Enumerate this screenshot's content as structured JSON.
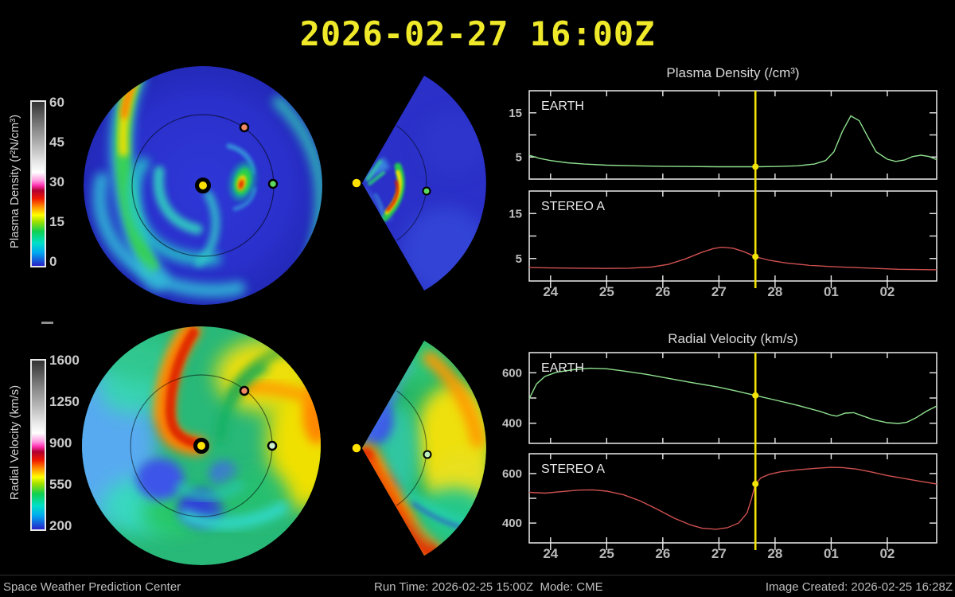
{
  "title": "2026-02-27 16:00Z",
  "colorbars": [
    {
      "label": "Plasma Density (r²N/cm³)",
      "ticks": [
        "60",
        "45",
        "30",
        "15",
        "0"
      ]
    },
    {
      "label": "Radial Velocity (km/s)",
      "ticks": [
        "1600",
        "1250",
        "900",
        "550",
        "200"
      ]
    }
  ],
  "footer": {
    "left": "Space Weather Prediction Center",
    "center": "Run Time: 2026-02-25 15:00Z  Mode: CME",
    "right": "Image Created: 2026-02-25 16:28Z"
  },
  "polar_markers": {
    "sun": "#ffe200",
    "earth": "#5cd85c",
    "stereo_a": "#ef8a64"
  },
  "chart_data": [
    {
      "type": "line",
      "title": "Plasma Density (/cm³)",
      "xlim": [
        23.62,
        30.88
      ],
      "xticks": [
        24,
        25,
        26,
        27,
        28,
        29,
        30
      ],
      "xtick_labels": [
        "24",
        "25",
        "26",
        "27",
        "28",
        "01",
        "02"
      ],
      "marker_x": 27.65,
      "marker_color": "#f2e205",
      "ylim": [
        0,
        20
      ],
      "yticks": [
        5,
        10,
        15
      ],
      "ytick_labels": [
        "5",
        "",
        "15"
      ],
      "panels": [
        {
          "label": "EARTH",
          "color": "#8fe08f",
          "points": [
            [
              23.62,
              5.4
            ],
            [
              23.8,
              4.7
            ],
            [
              24.0,
              4.2
            ],
            [
              24.3,
              3.7
            ],
            [
              24.6,
              3.4
            ],
            [
              25.0,
              3.15
            ],
            [
              25.5,
              3.0
            ],
            [
              26.0,
              2.9
            ],
            [
              26.5,
              2.85
            ],
            [
              27.0,
              2.8
            ],
            [
              27.3,
              2.8
            ],
            [
              27.65,
              2.8
            ],
            [
              28.0,
              2.85
            ],
            [
              28.4,
              3.0
            ],
            [
              28.7,
              3.4
            ],
            [
              28.9,
              4.2
            ],
            [
              29.05,
              6.2
            ],
            [
              29.2,
              10.8
            ],
            [
              29.35,
              14.3
            ],
            [
              29.5,
              13.2
            ],
            [
              29.65,
              9.6
            ],
            [
              29.8,
              6.2
            ],
            [
              30.0,
              4.5
            ],
            [
              30.15,
              4.0
            ],
            [
              30.3,
              4.3
            ],
            [
              30.45,
              5.1
            ],
            [
              30.6,
              5.4
            ],
            [
              30.75,
              5.1
            ],
            [
              30.88,
              4.4
            ]
          ]
        },
        {
          "label": "STEREO A",
          "color": "#cf5050",
          "points": [
            [
              23.62,
              3.0
            ],
            [
              24.0,
              2.9
            ],
            [
              24.5,
              2.85
            ],
            [
              25.0,
              2.8
            ],
            [
              25.4,
              2.85
            ],
            [
              25.8,
              3.1
            ],
            [
              26.1,
              3.7
            ],
            [
              26.4,
              4.9
            ],
            [
              26.7,
              6.4
            ],
            [
              26.9,
              7.2
            ],
            [
              27.05,
              7.5
            ],
            [
              27.25,
              7.3
            ],
            [
              27.45,
              6.5
            ],
            [
              27.65,
              5.4
            ],
            [
              27.9,
              4.6
            ],
            [
              28.2,
              4.0
            ],
            [
              28.6,
              3.5
            ],
            [
              29.0,
              3.2
            ],
            [
              29.4,
              3.0
            ],
            [
              29.8,
              2.8
            ],
            [
              30.2,
              2.6
            ],
            [
              30.5,
              2.55
            ],
            [
              30.88,
              2.5
            ]
          ]
        }
      ]
    },
    {
      "type": "line",
      "title": "Radial Velocity (km/s)",
      "xlim": [
        23.62,
        30.88
      ],
      "xticks": [
        24,
        25,
        26,
        27,
        28,
        29,
        30
      ],
      "xtick_labels": [
        "24",
        "25",
        "26",
        "27",
        "28",
        "01",
        "02"
      ],
      "marker_x": 27.65,
      "marker_color": "#f2e205",
      "ylim": [
        320,
        680
      ],
      "yticks": [
        400,
        500,
        600
      ],
      "ytick_labels": [
        "400",
        "",
        "600"
      ],
      "panels": [
        {
          "label": "EARTH",
          "color": "#8fe08f",
          "points": [
            [
              23.62,
              497
            ],
            [
              23.75,
              556
            ],
            [
              23.9,
              586
            ],
            [
              24.1,
              602
            ],
            [
              24.4,
              612
            ],
            [
              24.7,
              618
            ],
            [
              25.0,
              616
            ],
            [
              25.3,
              607
            ],
            [
              25.7,
              594
            ],
            [
              26.1,
              578
            ],
            [
              26.5,
              562
            ],
            [
              27.0,
              543
            ],
            [
              27.3,
              528
            ],
            [
              27.65,
              510
            ],
            [
              28.0,
              492
            ],
            [
              28.4,
              471
            ],
            [
              28.8,
              447
            ],
            [
              29.0,
              432
            ],
            [
              29.1,
              428
            ],
            [
              29.25,
              440
            ],
            [
              29.4,
              442
            ],
            [
              29.55,
              430
            ],
            [
              29.75,
              414
            ],
            [
              30.0,
              402
            ],
            [
              30.2,
              399
            ],
            [
              30.35,
              404
            ],
            [
              30.5,
              420
            ],
            [
              30.7,
              448
            ],
            [
              30.88,
              468
            ]
          ]
        },
        {
          "label": "STEREO A",
          "color": "#cf5050",
          "points": [
            [
              23.62,
              524
            ],
            [
              23.9,
              521
            ],
            [
              24.2,
              527
            ],
            [
              24.5,
              533
            ],
            [
              24.75,
              534
            ],
            [
              25.0,
              529
            ],
            [
              25.3,
              514
            ],
            [
              25.6,
              489
            ],
            [
              25.9,
              456
            ],
            [
              26.2,
              420
            ],
            [
              26.5,
              392
            ],
            [
              26.7,
              379
            ],
            [
              26.95,
              375
            ],
            [
              27.15,
              381
            ],
            [
              27.35,
              400
            ],
            [
              27.5,
              440
            ],
            [
              27.58,
              498
            ],
            [
              27.65,
              558
            ],
            [
              27.75,
              583
            ],
            [
              27.9,
              597
            ],
            [
              28.1,
              607
            ],
            [
              28.4,
              615
            ],
            [
              28.7,
              621
            ],
            [
              29.0,
              625
            ],
            [
              29.2,
              624
            ],
            [
              29.45,
              618
            ],
            [
              29.7,
              607
            ],
            [
              30.0,
              592
            ],
            [
              30.3,
              580
            ],
            [
              30.6,
              568
            ],
            [
              30.88,
              558
            ]
          ]
        }
      ]
    }
  ]
}
